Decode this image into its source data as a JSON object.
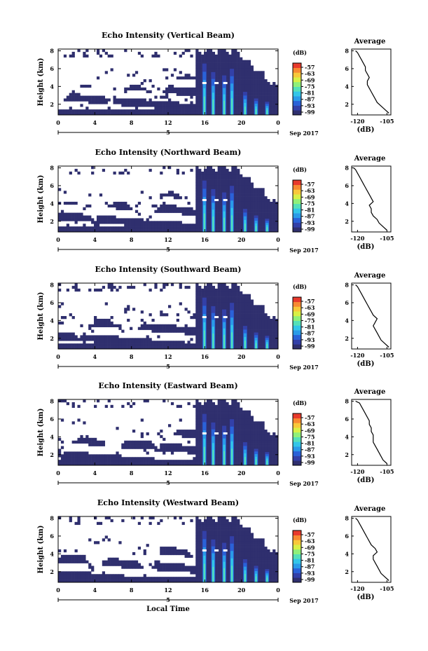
{
  "figure": {
    "xlabel": "Local Time"
  },
  "colorbar": {
    "unit": "(dB)",
    "tick_labels": [
      "-57",
      "-63",
      "-69",
      "-75",
      "-81",
      "-87",
      "-93",
      "-99"
    ],
    "colors": [
      "#2f2f6e",
      "#3340a8",
      "#2a62d8",
      "#2a9be8",
      "#33c6e8",
      "#55e0b8",
      "#8ff07a",
      "#d8f046",
      "#f8c83a",
      "#f88a32",
      "#e83a2c"
    ]
  },
  "chart_data": [
    {
      "type": "heatmap",
      "title": "Echo Intensity (Vertical Beam)",
      "ylabel": "Height (km)",
      "x_ticks": [
        "0",
        "4",
        "8",
        "12",
        "16",
        "20",
        "0"
      ],
      "x_date_label": "5",
      "date_label": "Sep 2017",
      "y_ticks": [
        "2",
        "4",
        "6",
        "8"
      ],
      "colorbar_unit": "(dB)",
      "colorbar_ticks": [
        "-57",
        "-63",
        "-69",
        "-75",
        "-81",
        "-87",
        "-93",
        "-99"
      ],
      "profile": {
        "title": "Average",
        "xlabel": "(dB)",
        "x_ticks": [
          "-120",
          "-105"
        ],
        "xlim": [
          -123,
          -103
        ],
        "y_ticks": [
          "2",
          "4",
          "6",
          "8"
        ],
        "ylim": [
          0.8,
          8.2
        ],
        "heights": [
          1.0,
          1.4,
          1.8,
          2.2,
          2.6,
          3.0,
          3.4,
          3.8,
          4.2,
          4.6,
          5.0,
          5.4,
          5.8,
          6.2,
          6.6,
          7.0,
          7.4,
          7.8,
          8.0
        ],
        "values": [
          -104,
          -106,
          -108,
          -110,
          -111,
          -112,
          -113,
          -114,
          -115,
          -115,
          -114,
          -115,
          -116,
          -116,
          -117,
          -118,
          -119,
          -120,
          -121
        ]
      }
    },
    {
      "type": "heatmap",
      "title": "Echo Intensity (Northward Beam)",
      "ylabel": "Height (km)",
      "x_ticks": [
        "0",
        "4",
        "8",
        "12",
        "16",
        "20",
        "0"
      ],
      "x_date_label": "5",
      "date_label": "Sep 2017",
      "y_ticks": [
        "2",
        "4",
        "6",
        "8"
      ],
      "colorbar_unit": "(dB)",
      "colorbar_ticks": [
        "-57",
        "-63",
        "-69",
        "-75",
        "-81",
        "-87",
        "-93",
        "-99"
      ],
      "profile": {
        "title": "Average",
        "xlabel": "(dB)",
        "x_ticks": [
          "-120",
          "-105"
        ],
        "xlim": [
          -123,
          -103
        ],
        "y_ticks": [
          "2",
          "4",
          "6",
          "8"
        ],
        "ylim": [
          0.8,
          8.2
        ],
        "heights": [
          1.0,
          1.4,
          1.8,
          2.2,
          2.6,
          3.0,
          3.4,
          3.8,
          4.2,
          4.6,
          5.0,
          5.4,
          5.8,
          6.2,
          6.6,
          7.0,
          7.4,
          7.8,
          8.0
        ],
        "values": [
          -105,
          -107,
          -109,
          -110,
          -112,
          -113,
          -113,
          -114,
          -112,
          -113,
          -114,
          -115,
          -116,
          -117,
          -118,
          -119,
          -120,
          -121,
          -122
        ]
      }
    },
    {
      "type": "heatmap",
      "title": "Echo Intensity (Southward Beam)",
      "ylabel": "Height (km)",
      "x_ticks": [
        "0",
        "4",
        "8",
        "12",
        "16",
        "20",
        "0"
      ],
      "x_date_label": "5",
      "date_label": "Sep 2017",
      "y_ticks": [
        "2",
        "4",
        "6",
        "8"
      ],
      "colorbar_unit": "(dB)",
      "colorbar_ticks": [
        "-57",
        "-63",
        "-69",
        "-75",
        "-81",
        "-87",
        "-93",
        "-99"
      ],
      "profile": {
        "title": "Average",
        "xlabel": "(dB)",
        "x_ticks": [
          "-120",
          "-105"
        ],
        "xlim": [
          -123,
          -103
        ],
        "y_ticks": [
          "2",
          "4",
          "6",
          "8"
        ],
        "ylim": [
          0.8,
          8.2
        ],
        "heights": [
          1.0,
          1.4,
          1.8,
          2.2,
          2.6,
          3.0,
          3.4,
          3.8,
          4.2,
          4.6,
          5.0,
          5.4,
          5.8,
          6.2,
          6.6,
          7.0,
          7.4,
          7.8,
          8.0
        ],
        "values": [
          -104,
          -106,
          -108,
          -109,
          -110,
          -111,
          -112,
          -111,
          -110,
          -112,
          -113,
          -114,
          -115,
          -116,
          -117,
          -118,
          -119,
          -120,
          -121
        ]
      }
    },
    {
      "type": "heatmap",
      "title": "Echo Intensity (Eastward Beam)",
      "ylabel": "Height (km)",
      "x_ticks": [
        "0",
        "4",
        "8",
        "12",
        "16",
        "20",
        "0"
      ],
      "x_date_label": "5",
      "date_label": "Sep 2017",
      "y_ticks": [
        "2",
        "4",
        "6",
        "8"
      ],
      "colorbar_unit": "(dB)",
      "colorbar_ticks": [
        "-57",
        "-63",
        "-69",
        "-75",
        "-81",
        "-87",
        "-93",
        "-99"
      ],
      "profile": {
        "title": "Average",
        "xlabel": "(dB)",
        "x_ticks": [
          "-120",
          "-105"
        ],
        "xlim": [
          -123,
          -103
        ],
        "y_ticks": [
          "2",
          "4",
          "6",
          "8"
        ],
        "ylim": [
          0.8,
          8.2
        ],
        "heights": [
          1.0,
          1.4,
          1.8,
          2.2,
          2.6,
          3.0,
          3.4,
          3.8,
          4.2,
          4.6,
          5.0,
          5.4,
          5.8,
          6.2,
          6.6,
          7.0,
          7.4,
          7.8,
          8.0
        ],
        "values": [
          -105,
          -107,
          -108,
          -109,
          -110,
          -111,
          -112,
          -112,
          -112,
          -113,
          -113,
          -114,
          -114,
          -115,
          -116,
          -117,
          -118,
          -119,
          -121
        ]
      }
    },
    {
      "type": "heatmap",
      "title": "Echo Intensity (Westward Beam)",
      "ylabel": "Height (km)",
      "x_ticks": [
        "0",
        "4",
        "8",
        "12",
        "16",
        "20",
        "0"
      ],
      "x_date_label": "5",
      "date_label": "Sep 2017",
      "y_ticks": [
        "2",
        "4",
        "6",
        "8"
      ],
      "colorbar_unit": "(dB)",
      "colorbar_ticks": [
        "-57",
        "-63",
        "-69",
        "-75",
        "-81",
        "-87",
        "-93",
        "-99"
      ],
      "profile": {
        "title": "Average",
        "xlabel": "(dB)",
        "x_ticks": [
          "-120",
          "-105"
        ],
        "xlim": [
          -123,
          -103
        ],
        "y_ticks": [
          "2",
          "4",
          "6",
          "8"
        ],
        "ylim": [
          0.8,
          8.2
        ],
        "heights": [
          1.0,
          1.4,
          1.8,
          2.2,
          2.6,
          3.0,
          3.4,
          3.8,
          4.2,
          4.6,
          5.0,
          5.4,
          5.8,
          6.2,
          6.6,
          7.0,
          7.4,
          7.8,
          8.0
        ],
        "values": [
          -104,
          -106,
          -108,
          -109,
          -110,
          -111,
          -112,
          -112,
          -110,
          -111,
          -113,
          -114,
          -115,
          -116,
          -117,
          -118,
          -119,
          -120,
          -121
        ]
      }
    }
  ]
}
